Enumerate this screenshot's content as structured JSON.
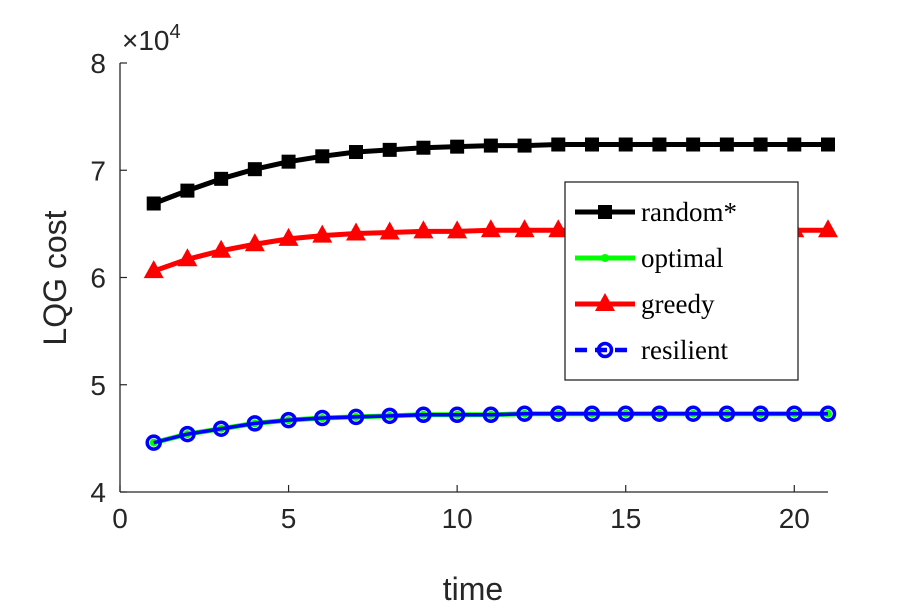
{
  "chart_data": {
    "type": "line",
    "xlabel": "time",
    "ylabel": "LQG cost",
    "xlim": [
      0,
      21
    ],
    "ylim": [
      4,
      8
    ],
    "y_multiplier": "×10^4",
    "y_multiplier_base": "×10",
    "y_multiplier_exp": "4",
    "grid": false,
    "legend_position": "right-middle",
    "xticks": [
      0,
      5,
      10,
      15,
      20
    ],
    "xtick_labels": [
      "0",
      "5",
      "10",
      "15",
      "20"
    ],
    "yticks": [
      4,
      5,
      6,
      7,
      8
    ],
    "ytick_labels": [
      "4",
      "5",
      "6",
      "7",
      "8"
    ],
    "x": [
      1,
      2,
      3,
      4,
      5,
      6,
      7,
      8,
      9,
      10,
      11,
      12,
      13,
      14,
      15,
      16,
      17,
      18,
      19,
      20,
      21
    ],
    "series": [
      {
        "name": "random*",
        "color": "#000000",
        "marker": "square",
        "values": [
          6.69,
          6.81,
          6.92,
          7.01,
          7.08,
          7.13,
          7.17,
          7.19,
          7.21,
          7.22,
          7.23,
          7.23,
          7.24,
          7.24,
          7.24,
          7.24,
          7.24,
          7.24,
          7.24,
          7.24,
          7.24
        ]
      },
      {
        "name": "optimal",
        "color": "#00ff00",
        "marker": "dot",
        "values": [
          4.46,
          4.54,
          4.59,
          4.64,
          4.67,
          4.69,
          4.7,
          4.71,
          4.72,
          4.72,
          4.72,
          4.73,
          4.73,
          4.73,
          4.73,
          4.73,
          4.73,
          4.73,
          4.73,
          4.73,
          4.73
        ]
      },
      {
        "name": "greedy",
        "color": "#ff0000",
        "marker": "triangle",
        "values": [
          6.06,
          6.17,
          6.25,
          6.31,
          6.36,
          6.39,
          6.41,
          6.42,
          6.43,
          6.43,
          6.44,
          6.44,
          6.44,
          6.44,
          6.44,
          6.44,
          6.44,
          6.44,
          6.44,
          6.44,
          6.44
        ]
      },
      {
        "name": "resilient",
        "color": "#0000ff",
        "marker": "circle",
        "values": [
          4.46,
          4.54,
          4.59,
          4.64,
          4.67,
          4.69,
          4.7,
          4.71,
          4.72,
          4.72,
          4.72,
          4.73,
          4.73,
          4.73,
          4.73,
          4.73,
          4.73,
          4.73,
          4.73,
          4.73,
          4.73
        ]
      }
    ]
  }
}
